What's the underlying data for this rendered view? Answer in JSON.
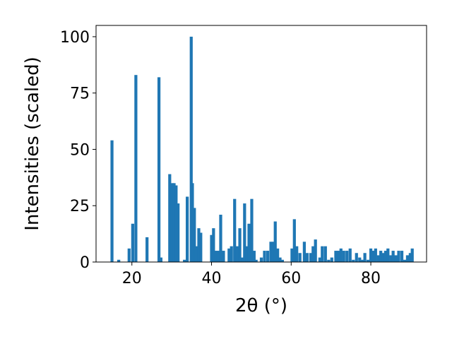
{
  "chart_data": {
    "type": "bar",
    "xlabel": "2θ (°)",
    "ylabel": "Intensities (scaled)",
    "xlim": [
      11,
      94
    ],
    "ylim": [
      0,
      105
    ],
    "xticks": [
      20,
      40,
      60,
      80
    ],
    "yticks": [
      0,
      25,
      50,
      75,
      100
    ],
    "grid": false,
    "bar_color": "#1f77b4",
    "bar_width": 0.75,
    "x": [
      15.0,
      16.7,
      19.3,
      20.2,
      21.0,
      23.8,
      26.8,
      27.3,
      29.5,
      30.1,
      30.6,
      31.1,
      31.6,
      33.2,
      33.9,
      34.9,
      35.2,
      35.7,
      36.2,
      36.8,
      37.3,
      40.0,
      40.5,
      41.0,
      41.6,
      42.3,
      43.0,
      44.4,
      45.0,
      45.8,
      46.4,
      47.1,
      47.8,
      48.3,
      48.8,
      49.4,
      50.1,
      50.7,
      51.2,
      52.5,
      53.3,
      54.1,
      54.9,
      55.5,
      56.0,
      56.6,
      57.2,
      57.8,
      60.2,
      60.8,
      61.4,
      62.2,
      63.3,
      64.0,
      64.9,
      65.5,
      66.1,
      67.2,
      67.8,
      68.6,
      69.4,
      70.2,
      71.2,
      71.9,
      72.5,
      73.2,
      74.0,
      74.8,
      75.6,
      76.4,
      77.2,
      77.9,
      78.5,
      79.3,
      80.0,
      80.6,
      81.2,
      81.9,
      82.5,
      83.1,
      83.7,
      84.3,
      85.0,
      85.6,
      86.3,
      87.0,
      87.8,
      88.5,
      89.2,
      89.9,
      90.4
    ],
    "values": [
      54,
      1,
      6,
      17,
      83,
      11,
      82,
      2,
      39,
      35,
      35,
      34,
      26,
      1,
      29,
      100,
      35,
      24,
      7,
      15,
      13,
      12,
      15,
      5,
      5,
      21,
      5,
      6,
      7,
      28,
      7,
      15,
      2,
      26,
      7,
      17,
      28,
      5,
      1,
      2,
      5,
      5,
      9,
      9,
      18,
      6,
      2,
      1,
      6,
      19,
      7,
      4,
      9,
      4,
      4,
      7,
      10,
      2,
      7,
      7,
      1,
      2,
      5,
      5,
      6,
      5,
      5,
      6,
      1,
      4,
      2,
      1,
      4,
      1,
      6,
      5,
      6,
      3,
      5,
      4,
      5,
      6,
      3,
      5,
      3,
      5,
      5,
      1,
      3,
      4,
      6
    ]
  }
}
